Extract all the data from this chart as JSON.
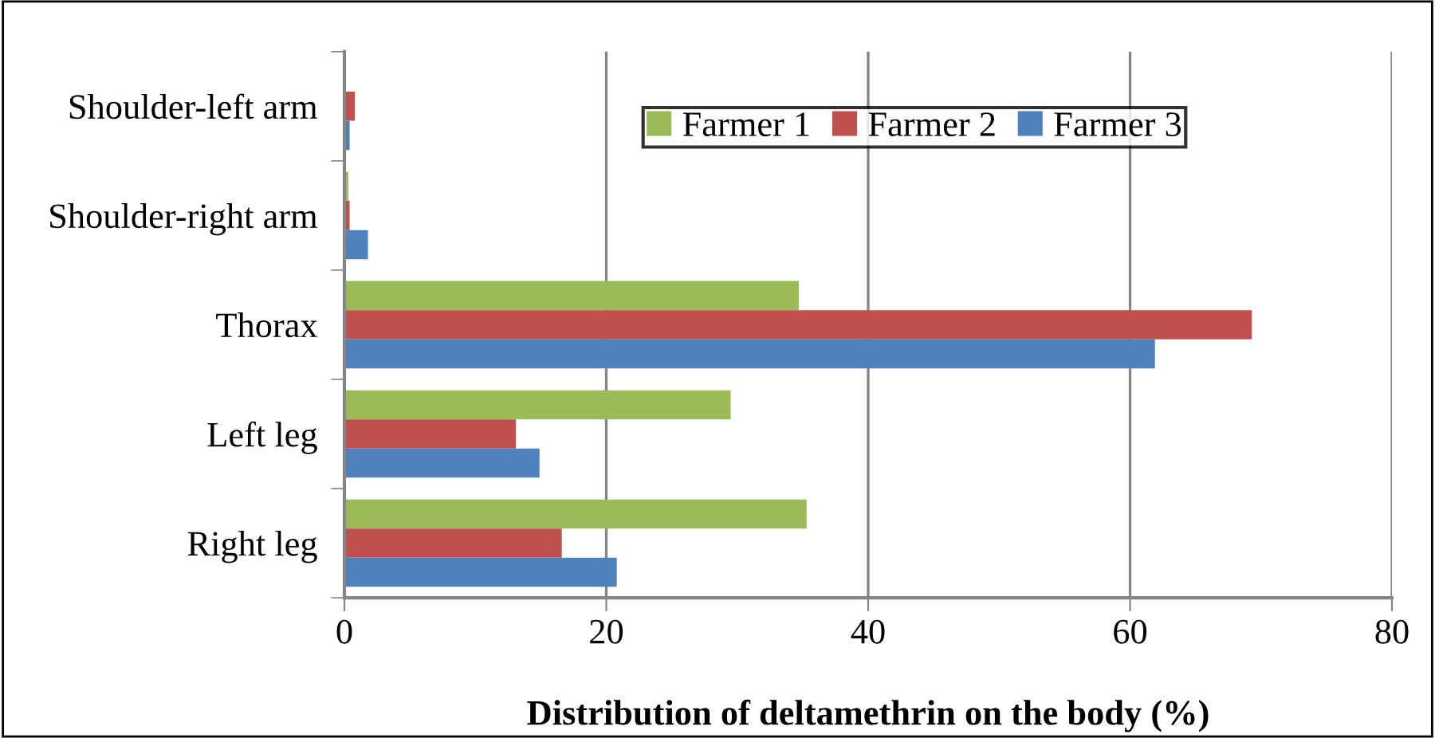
{
  "chart_data": {
    "type": "bar",
    "orientation": "horizontal",
    "categories": [
      "Shoulder-left arm",
      "Shoulder-right arm",
      "Thorax",
      "Left leg",
      "Right leg"
    ],
    "series": [
      {
        "name": "Farmer 1",
        "color": "#9bbb59",
        "values": [
          0,
          0.3,
          34.7,
          29.5,
          35.3
        ]
      },
      {
        "name": "Farmer 2",
        "color": "#c0504d",
        "values": [
          0.8,
          0.4,
          69.3,
          13.1,
          16.6
        ]
      },
      {
        "name": "Farmer 3",
        "color": "#4f81bd",
        "values": [
          0.4,
          1.8,
          61.9,
          14.9,
          20.8
        ]
      }
    ],
    "xlabel": "Distribution of deltamethrin on the body (%)",
    "xlim": [
      0,
      80
    ],
    "xticks": [
      0,
      20,
      40,
      60,
      80
    ],
    "grid": "x",
    "legend": "top right"
  }
}
